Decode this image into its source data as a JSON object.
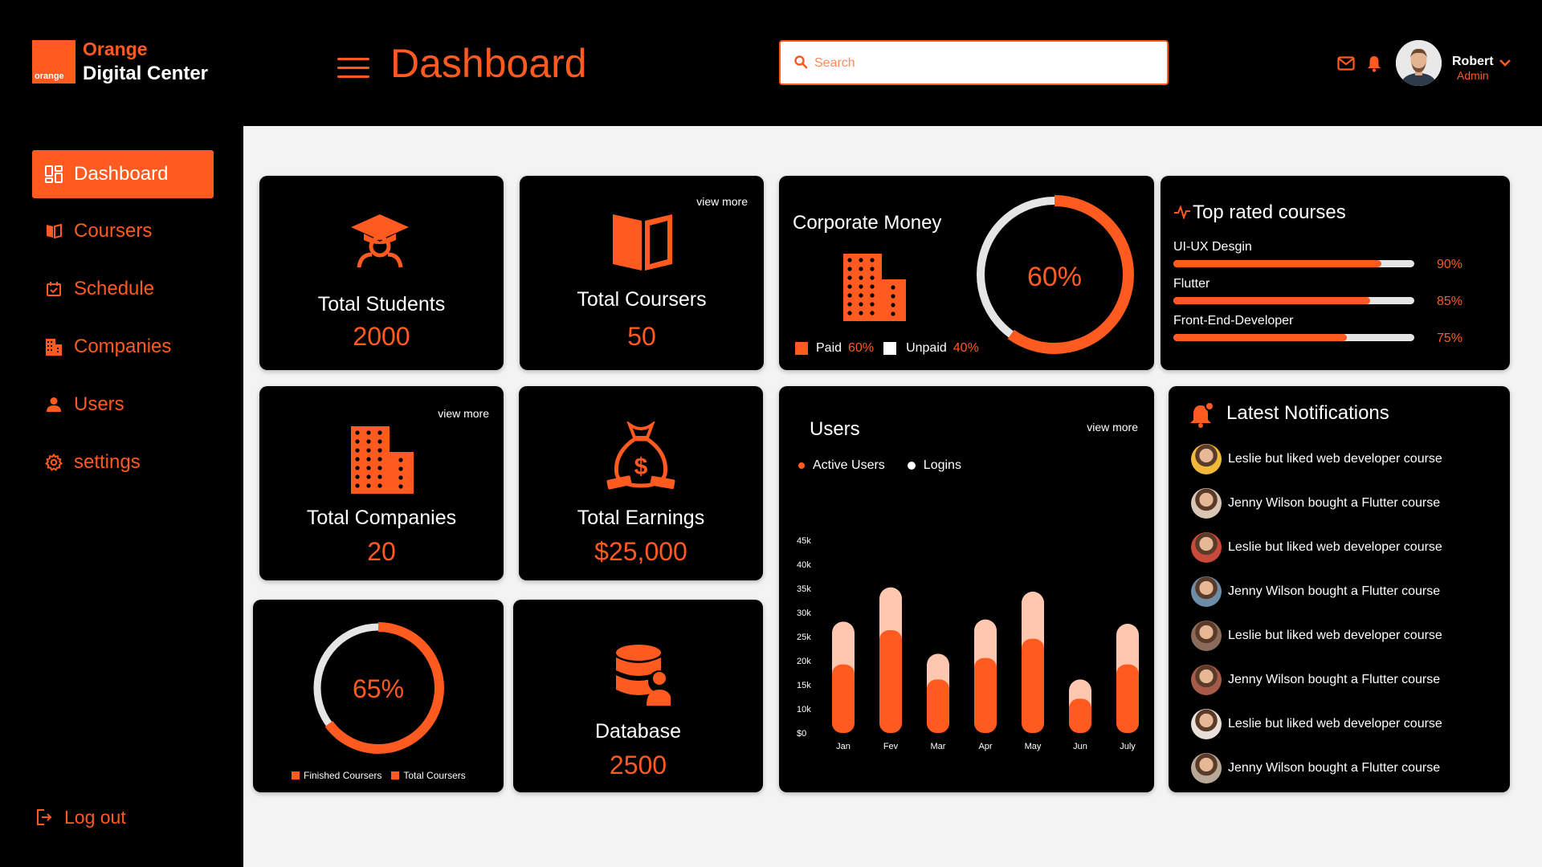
{
  "brand": {
    "line1": "Orange",
    "line2": "Digital Center",
    "logo_text": "orange"
  },
  "header": {
    "title": "Dashboard",
    "search_placeholder": "Search",
    "user_name": "Robert",
    "user_role": "Admin"
  },
  "sidebar": {
    "items": [
      {
        "label": "Dashboard",
        "icon": "dashboard-icon",
        "active": true
      },
      {
        "label": "Coursers",
        "icon": "book-icon"
      },
      {
        "label": "Schedule",
        "icon": "calendar-icon"
      },
      {
        "label": "Companies",
        "icon": "building-icon"
      },
      {
        "label": "Users",
        "icon": "user-icon"
      },
      {
        "label": "settings",
        "icon": "gear-icon"
      }
    ],
    "logout": "Log out"
  },
  "cards": {
    "students": {
      "label": "Total Students",
      "value": "2000"
    },
    "courses": {
      "label": "Total Coursers",
      "value": "50",
      "view_more": "view more"
    },
    "companies": {
      "label": "Total Companies",
      "value": "20",
      "view_more": "view more"
    },
    "earnings": {
      "label": "Total Earnings",
      "value": "$25,000"
    },
    "database": {
      "label": "Database",
      "value": "2500"
    },
    "corporate": {
      "title": "Corporate Money",
      "percent_label": "60%",
      "paid_label": "Paid",
      "paid_value": "60%",
      "unpaid_label": "Unpaid",
      "unpaid_value": "40%",
      "paid_fraction": 0.6
    },
    "progress": {
      "percent_label": "65%",
      "fraction": 0.65,
      "legend_finished": "Finished Coursers",
      "legend_total": "Total Coursers"
    }
  },
  "top_rated": {
    "title": "Top rated courses",
    "courses": [
      {
        "name": "UI-UX Desgin",
        "percent_label": "90%",
        "value": 0.9
      },
      {
        "name": "Flutter",
        "percent_label": "85%",
        "value": 0.85
      },
      {
        "name": "Front-End-Developer",
        "percent_label": "75%",
        "value": 0.75
      }
    ]
  },
  "users_chart": {
    "title": "Users",
    "view_more": "view more",
    "legend_active": "Active Users",
    "legend_logins": "Logins"
  },
  "chart_data": {
    "type": "bar",
    "stacked": true,
    "categories": [
      "Jan",
      "Fev",
      "Mar",
      "Apr",
      "May",
      "Jun",
      "July"
    ],
    "series": [
      {
        "name": "Active Users",
        "values": [
          16000,
          24000,
          12500,
          17500,
          22000,
          8000,
          16000
        ]
      },
      {
        "name": "Logins",
        "values": [
          10000,
          10000,
          6000,
          9000,
          11000,
          4500,
          9500
        ]
      }
    ],
    "yticks": [
      "$0",
      "10k",
      "15k",
      "20k",
      "25k",
      "30k",
      "35k",
      "40k",
      "45k"
    ],
    "ylim": [
      0,
      45000
    ],
    "colors": {
      "active": "#FF5A1F",
      "logins": "#FFC7B0"
    }
  },
  "notifications": {
    "title": "Latest Notifications",
    "items": [
      {
        "text": "Leslie but liked web developer course"
      },
      {
        "text": "Jenny Wilson  bought a Flutter course"
      },
      {
        "text": "Leslie  but liked web developer course"
      },
      {
        "text": "Jenny Wilson  bought a Flutter course"
      },
      {
        "text": "Leslie  but liked web developer course"
      },
      {
        "text": "Jenny Wilson  bought a Flutter course"
      },
      {
        "text": "Leslie  but liked web developer course"
      },
      {
        "text": "Jenny Wilson  bought a Flutter course"
      }
    ]
  },
  "colors": {
    "accent": "#FF5A1F",
    "accent_light": "#FFC7B0",
    "background": "#000000",
    "panel": "#F3F3F3"
  }
}
